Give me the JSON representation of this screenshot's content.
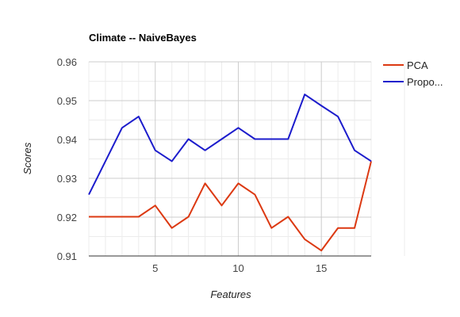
{
  "chart_data": {
    "type": "line",
    "title": "Climate -- NaiveBayes",
    "xlabel": "Features",
    "ylabel": "Scores",
    "xlim": [
      1,
      18
    ],
    "ylim": [
      0.91,
      0.96
    ],
    "x_ticks": [
      5,
      10,
      15
    ],
    "y_ticks": [
      "0.91",
      "0.92",
      "0.93",
      "0.94",
      "0.95",
      "0.96"
    ],
    "x": [
      1,
      2,
      3,
      4,
      5,
      6,
      7,
      8,
      9,
      10,
      11,
      12,
      13,
      14,
      15,
      16,
      17,
      18
    ],
    "series": [
      {
        "name": "PCA",
        "color": "#dc3912",
        "values": [
          0.9201,
          0.9201,
          0.9201,
          0.9201,
          0.923,
          0.9172,
          0.9201,
          0.9287,
          0.923,
          0.9287,
          0.9258,
          0.9172,
          0.9201,
          0.9143,
          0.9114,
          0.9172,
          0.9172,
          0.9344
        ]
      },
      {
        "name": "Propo...",
        "color": "#1c1ccc",
        "values": [
          0.9258,
          0.9344,
          0.943,
          0.9459,
          0.9372,
          0.9344,
          0.9401,
          0.9372,
          0.9401,
          0.943,
          0.9401,
          0.9401,
          0.9401,
          0.9516,
          0.9487,
          0.9459,
          0.9372,
          0.9344
        ]
      }
    ],
    "grid": true,
    "legend_position": "right"
  }
}
